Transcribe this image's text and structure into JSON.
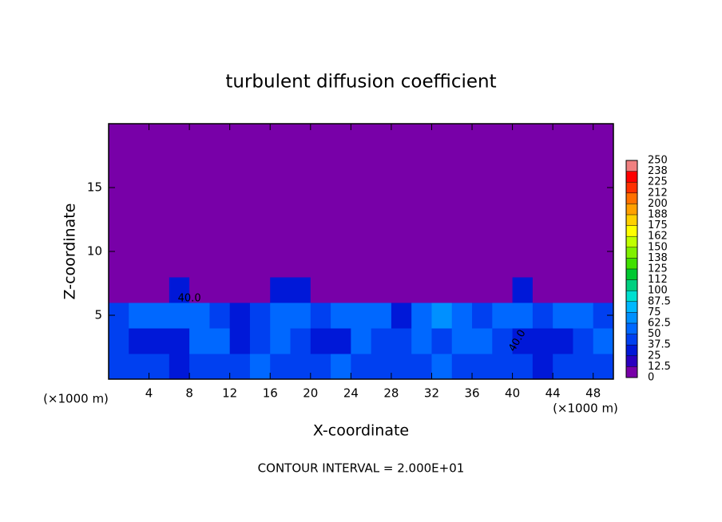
{
  "chart_data": {
    "type": "contour",
    "title": "turbulent diffusion coefficient",
    "x_label": "X-coordinate",
    "y_label": "Z-coordinate",
    "x_unit_labels": [
      "(×1000 m)",
      "(×1000 m)"
    ],
    "footer": "CONTOUR INTERVAL = 2.000E+01",
    "contour_labels": [
      "40.0",
      "40.0"
    ],
    "xlim": [
      0,
      50
    ],
    "ylim": [
      0,
      20
    ],
    "xticks": [
      4,
      8,
      12,
      16,
      20,
      24,
      28,
      32,
      36,
      40,
      44,
      48
    ],
    "yticks": [
      5,
      10,
      15
    ],
    "field": [
      [
        40,
        45,
        40,
        35,
        40,
        45,
        40,
        50,
        45,
        40,
        45,
        50,
        40,
        40,
        45,
        40,
        50,
        40,
        45,
        45,
        40,
        35,
        40,
        45,
        40
      ],
      [
        45,
        35,
        30,
        35,
        55,
        50,
        30,
        45,
        55,
        40,
        35,
        30,
        55,
        45,
        40,
        55,
        45,
        60,
        50,
        40,
        35,
        30,
        35,
        45,
        50
      ],
      [
        40,
        50,
        55,
        60,
        55,
        40,
        35,
        45,
        55,
        50,
        45,
        55,
        60,
        50,
        35,
        55,
        65,
        55,
        40,
        50,
        55,
        45,
        55,
        60,
        40
      ],
      [
        0,
        0,
        0,
        25,
        12,
        0,
        0,
        0,
        25,
        25,
        0,
        0,
        0,
        0,
        0,
        12,
        0,
        0,
        0,
        0,
        25,
        0,
        0,
        0,
        0
      ],
      [
        0,
        0,
        0,
        0,
        0,
        0,
        0,
        0,
        0,
        0,
        0,
        0,
        0,
        0,
        0,
        0,
        0,
        0,
        0,
        0,
        0,
        0,
        0,
        0,
        0
      ],
      [
        0,
        0,
        0,
        0,
        0,
        0,
        0,
        0,
        0,
        0,
        0,
        0,
        0,
        0,
        0,
        0,
        0,
        0,
        0,
        0,
        0,
        0,
        0,
        0,
        0
      ],
      [
        0,
        0,
        0,
        0,
        0,
        0,
        0,
        0,
        0,
        0,
        0,
        0,
        0,
        0,
        0,
        0,
        0,
        0,
        0,
        0,
        0,
        0,
        0,
        0,
        0
      ],
      [
        0,
        0,
        0,
        0,
        0,
        0,
        0,
        0,
        0,
        0,
        0,
        0,
        0,
        0,
        0,
        0,
        0,
        0,
        0,
        0,
        0,
        0,
        0,
        0,
        0
      ],
      [
        0,
        0,
        0,
        0,
        0,
        0,
        0,
        0,
        0,
        0,
        0,
        0,
        0,
        0,
        0,
        0,
        0,
        0,
        0,
        0,
        0,
        0,
        0,
        0,
        0
      ],
      [
        0,
        0,
        0,
        0,
        0,
        0,
        0,
        0,
        0,
        0,
        0,
        0,
        0,
        0,
        0,
        0,
        0,
        0,
        0,
        0,
        0,
        0,
        0,
        0,
        0
      ]
    ],
    "levels": [
      0,
      12.5,
      25,
      37.5,
      50,
      62.5,
      75,
      87.5,
      100,
      {
        "value": 112.5,
        "label": "112"
      },
      125,
      {
        "value": 137.5,
        "label": "138"
      },
      150,
      {
        "value": 162.5,
        "label": "162"
      },
      175,
      {
        "value": 187.5,
        "label": "188"
      },
      200,
      {
        "value": 212.5,
        "label": "212"
      },
      225,
      {
        "value": 237.5,
        "label": "238"
      },
      250
    ],
    "level_colors": [
      "#7800a8",
      "#2a00c0",
      "#0018d8",
      "#0040f0",
      "#0068ff",
      "#0090ff",
      "#00b8ff",
      "#00e0d0",
      "#00d080",
      "#00c830",
      "#40e000",
      "#80f000",
      "#c0ff00",
      "#ffff00",
      "#ffd000",
      "#ffa000",
      "#ff7000",
      "#ff3000",
      "#ff0000",
      "#f08080"
    ]
  }
}
